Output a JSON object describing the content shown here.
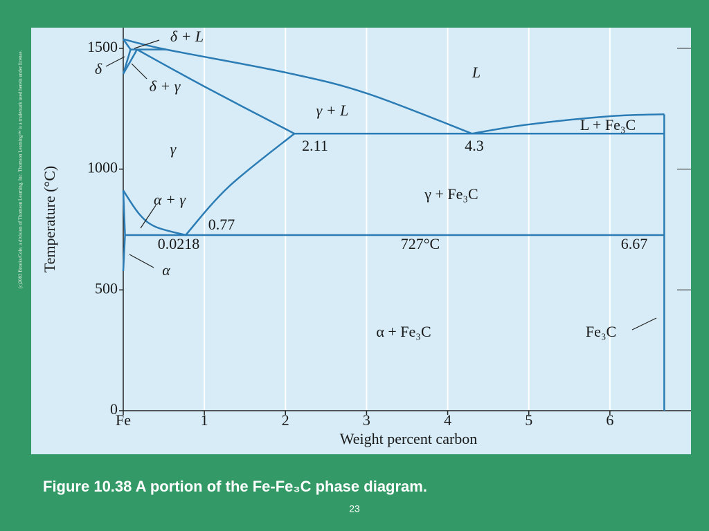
{
  "chart_data": {
    "type": "line",
    "xlabel": "Weight percent carbon",
    "ylabel": "Temperature (°C)",
    "xlim": [
      0,
      7
    ],
    "ylim": [
      0,
      1600
    ],
    "xticks": [
      {
        "value": 0,
        "label": "Fe"
      },
      1,
      2,
      3,
      4,
      5,
      6
    ],
    "yticks": [
      0,
      500,
      1000,
      1500
    ],
    "grid": true,
    "color": "#2b7bb4",
    "series": [
      {
        "x": [
          0,
          0.53,
          2,
          3,
          4.3
        ],
        "values": [
          1538,
          1495,
          1400,
          1314,
          1147
        ]
      },
      {
        "x": [
          4.3,
          5,
          6,
          6.67
        ],
        "values": [
          1147,
          1185,
          1219,
          1227
        ]
      },
      {
        "x": [
          0.17,
          1,
          2.11
        ],
        "values": [
          1495,
          1342,
          1147
        ]
      },
      {
        "x": [
          0.77,
          1.3,
          2.11
        ],
        "values": [
          727,
          927,
          1147
        ]
      },
      {
        "x": [
          0,
          0.2,
          0.4,
          0.77
        ],
        "values": [
          912,
          813,
          761,
          727
        ]
      },
      {
        "x": [
          0,
          0.0218
        ],
        "values": [
          912,
          727
        ]
      },
      {
        "x": [
          0.0218,
          0
        ],
        "values": [
          727,
          578
        ]
      },
      {
        "x": [
          2.11,
          6.67
        ],
        "values": [
          1147,
          1147
        ]
      },
      {
        "x": [
          0.0218,
          6.67
        ],
        "values": [
          727,
          727
        ]
      },
      {
        "x": [
          6.67,
          6.67
        ],
        "values": [
          0,
          1227
        ]
      },
      {
        "x": [
          0,
          0.09
        ],
        "values": [
          1538,
          1495
        ]
      },
      {
        "x": [
          0,
          0.09
        ],
        "values": [
          1394,
          1495
        ]
      },
      {
        "x": [
          0,
          0.17
        ],
        "values": [
          1394,
          1495
        ]
      },
      {
        "x": [
          0.09,
          0.53
        ],
        "values": [
          1495,
          1495
        ]
      }
    ],
    "annotations": [
      "δ + L",
      "δ",
      "δ + γ",
      "L",
      "γ + L",
      "γ",
      "2.11",
      "4.3",
      "L + Fe₃C",
      "γ + Fe₃C",
      "α + γ",
      "0.77",
      "0.0218",
      "727°C",
      "6.67",
      "α",
      "α + Fe₃C",
      "Fe₃C"
    ]
  },
  "caption": "Figure 10.38  A portion of the Fe-Fe₃C phase diagram.",
  "page_number": "23",
  "copyright": "(c)2003 Brooks/Cole, a division of Thomson Learning, Inc.  Thomson Learning™ is a trademark used herein under license."
}
